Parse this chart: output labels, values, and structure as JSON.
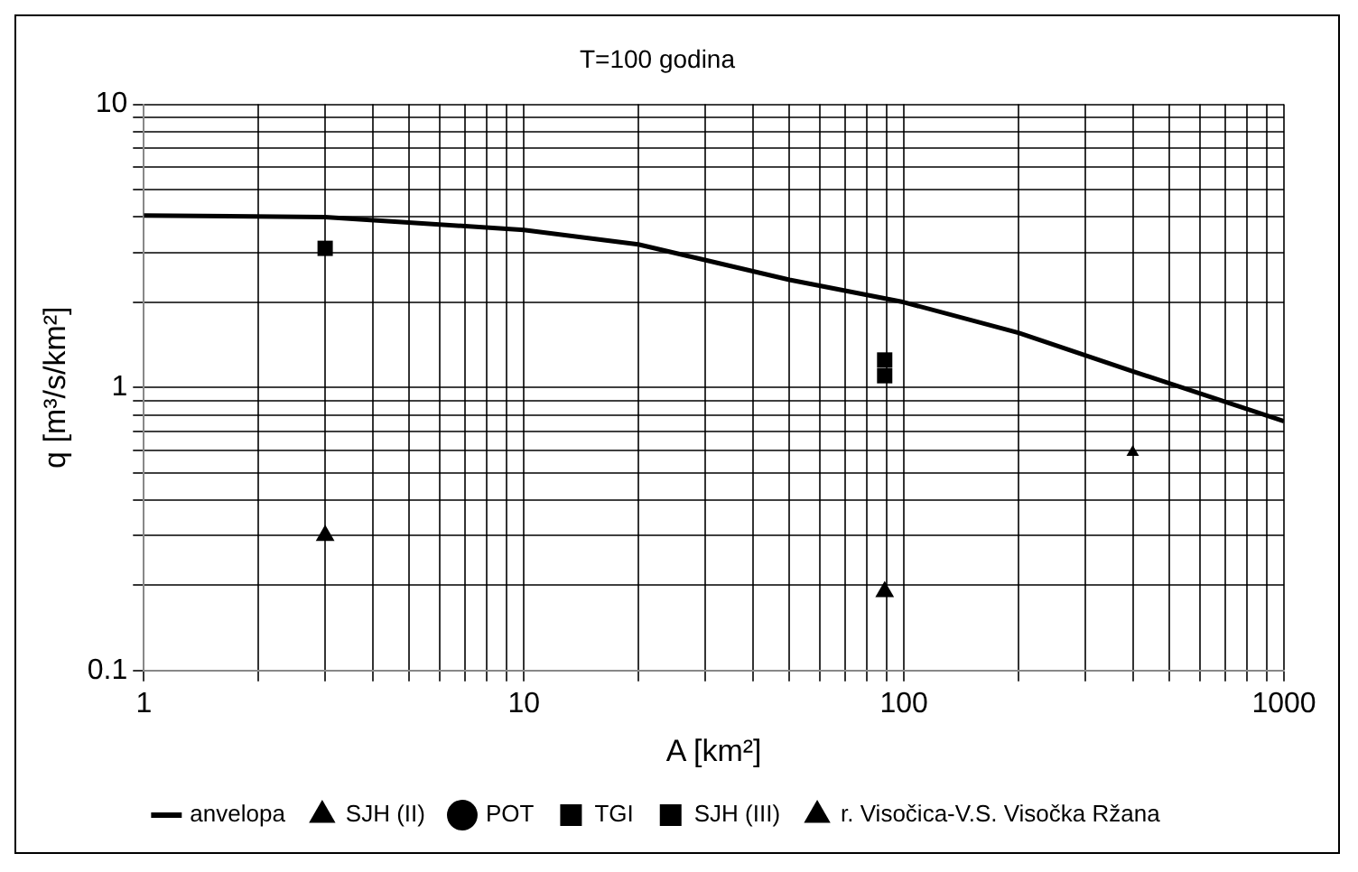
{
  "chart_data": {
    "type": "scatter",
    "title": "T=100 godina",
    "xlabel": "A [km²]",
    "ylabel": "q [m³/s/km²]",
    "log": "xy",
    "grid": true,
    "legend": "bottom",
    "xlim": [
      1,
      1000
    ],
    "ylim": [
      0.1,
      10
    ],
    "xticks": [
      1,
      {
        "value": 2,
        "label": null
      },
      {
        "value": 3,
        "label": null
      },
      {
        "value": 4,
        "label": null
      },
      {
        "value": 5,
        "label": null
      },
      {
        "value": 6,
        "label": null
      },
      {
        "value": 7,
        "label": null
      },
      {
        "value": 8,
        "label": null
      },
      {
        "value": 9,
        "label": null
      },
      10,
      {
        "value": 20,
        "label": null
      },
      {
        "value": 30,
        "label": null
      },
      {
        "value": 40,
        "label": null
      },
      {
        "value": 50,
        "label": null
      },
      {
        "value": 60,
        "label": null
      },
      {
        "value": 70,
        "label": null
      },
      {
        "value": 80,
        "label": null
      },
      {
        "value": 90,
        "label": null
      },
      100,
      {
        "value": 200,
        "label": null
      },
      {
        "value": 300,
        "label": null
      },
      {
        "value": 400,
        "label": null
      },
      {
        "value": 500,
        "label": null
      },
      {
        "value": 600,
        "label": null
      },
      {
        "value": 700,
        "label": null
      },
      {
        "value": 800,
        "label": null
      },
      {
        "value": 900,
        "label": null
      },
      1000
    ],
    "yticks": [
      0.1,
      {
        "value": 0.2,
        "label": null
      },
      {
        "value": 0.3,
        "label": null
      },
      {
        "value": 0.4,
        "label": null
      },
      {
        "value": 0.5,
        "label": null
      },
      {
        "value": 0.6,
        "label": null
      },
      {
        "value": 0.7,
        "label": null
      },
      {
        "value": 0.8,
        "label": null
      },
      {
        "value": 0.9,
        "label": null
      },
      1,
      {
        "value": 2,
        "label": null
      },
      {
        "value": 3,
        "label": null
      },
      {
        "value": 4,
        "label": null
      },
      {
        "value": 5,
        "label": null
      },
      {
        "value": 6,
        "label": null
      },
      {
        "value": 7,
        "label": null
      },
      {
        "value": 8,
        "label": null
      },
      {
        "value": 9,
        "label": null
      },
      10
    ],
    "series": [
      {
        "name": "anvelopa",
        "type": "line",
        "marker": "none",
        "color": "#000000",
        "x": [
          1,
          3,
          10,
          20,
          50,
          100,
          200,
          400,
          1000
        ],
        "values": [
          4.05,
          4.0,
          3.6,
          3.2,
          2.4,
          2.0,
          1.56,
          1.14,
          0.76
        ]
      },
      {
        "name": "SJH (II)",
        "marker": "triangle",
        "color": "#000000",
        "x": [
          3,
          89
        ],
        "values": [
          0.3,
          0.19
        ]
      },
      {
        "name": "POT",
        "marker": "circle",
        "color": "#000000"
      },
      {
        "name": "TGI",
        "marker": "square",
        "color": "#000000"
      },
      {
        "name": "SJH (III)",
        "marker": "square",
        "color": "#000000",
        "x": [
          3,
          89,
          89
        ],
        "values": [
          3.1,
          1.25,
          1.1
        ]
      },
      {
        "name": "r. Visočica-V.S. Visočka Ržana",
        "marker": "triangle",
        "color": "#000000",
        "x": [
          400
        ],
        "values": [
          0.59
        ]
      }
    ]
  }
}
